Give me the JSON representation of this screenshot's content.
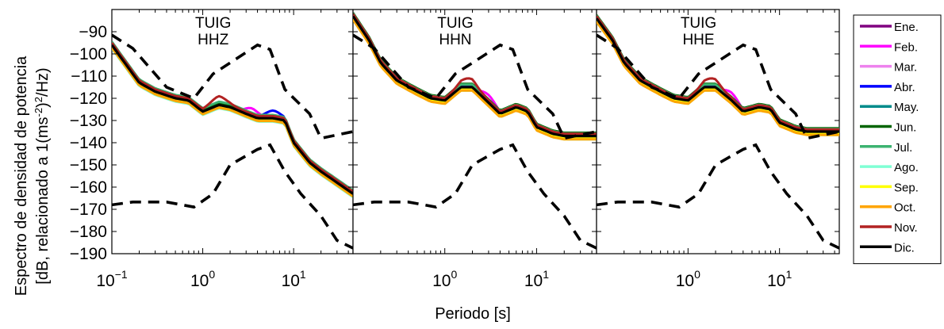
{
  "figure": {
    "xlabel": "Periodo [s]",
    "ylabel_line1": "Espectro de densidad de potencia",
    "ylabel_line2_prefix": "[dB, relacionado a 1(ms",
    "ylabel_sup1": "-2",
    "ylabel_mid": ")",
    "ylabel_sup2": "2",
    "ylabel_suffix": "/Hz)"
  },
  "chart_data": {
    "type": "line",
    "x_scale": "log",
    "xlim": [
      0.1,
      45
    ],
    "ylim": [
      -190,
      -80
    ],
    "y_ticks": [
      -90,
      -100,
      -110,
      -120,
      -130,
      -140,
      -150,
      -160,
      -170,
      -180,
      -190
    ],
    "x_ticks": [
      {
        "base": "10",
        "exp": "-1"
      },
      {
        "base": "10",
        "exp": "0"
      },
      {
        "base": "10",
        "exp": "1"
      }
    ],
    "grid": false,
    "legend_position": "right",
    "months": [
      "Ene.",
      "Feb.",
      "Mar.",
      "Abr.",
      "May.",
      "Jun.",
      "Jul.",
      "Ago.",
      "Sep.",
      "Oct.",
      "Nov.",
      "Dic."
    ],
    "month_colors": [
      "#800080",
      "#ff00ff",
      "#ee82ee",
      "#0000ff",
      "#008b8b",
      "#006400",
      "#3cb371",
      "#7fffd4",
      "#ffff00",
      "#ffa500",
      "#b22222",
      "#000000"
    ],
    "panels": [
      {
        "title_line1": "TUIG",
        "title_line2": "HHZ",
        "period": [
          0.1,
          0.15,
          0.2,
          0.3,
          0.5,
          0.7,
          1.0,
          1.5,
          2.0,
          3.0,
          4.0,
          6.0,
          8.0,
          10.0,
          15.0,
          20.0,
          30.0,
          45.0
        ],
        "base": [
          -96,
          -106,
          -113,
          -117,
          -120,
          -121,
          -126,
          -123,
          -124,
          -127,
          -129,
          -129,
          -130,
          -140,
          -149,
          -153,
          -158,
          -163
        ],
        "month_offsets": [
          0.5,
          -0.5,
          0.0,
          0.5,
          -1.0,
          1.0,
          1.5,
          -1.5,
          -0.8,
          -1.2,
          1.0,
          0.0
        ],
        "bump_months": [
          {
            "month": "Feb.",
            "x": 3.5,
            "dy": 4
          },
          {
            "month": "Nov.",
            "x": 1.5,
            "dy": 3
          },
          {
            "month": "Abr.",
            "x": 6.0,
            "dy": 3
          }
        ],
        "nhnm_period": [
          0.1,
          0.17,
          0.4,
          0.8,
          1.3,
          4.0,
          5.5,
          8.0,
          15.0,
          20.0,
          45.0
        ],
        "nhnm": [
          -91.5,
          -97.5,
          -115,
          -120,
          -109,
          -96,
          -98,
          -116,
          -127,
          -138,
          -135
        ],
        "nlnm_period": [
          0.1,
          0.17,
          0.4,
          0.8,
          1.3,
          2.0,
          4.0,
          5.5,
          8.0,
          12.0,
          20.0,
          30.0,
          45.0
        ],
        "nlnm": [
          -168,
          -166.7,
          -166.7,
          -169,
          -163,
          -150,
          -143,
          -141,
          -153,
          -163,
          -173,
          -184,
          -187.5
        ]
      },
      {
        "title_line1": "TUIG",
        "title_line2": "HHN",
        "period": [
          0.1,
          0.15,
          0.2,
          0.3,
          0.5,
          0.7,
          1.0,
          1.5,
          2.0,
          3.0,
          4.0,
          6.0,
          8.0,
          10.0,
          15.0,
          20.0,
          30.0,
          45.0
        ],
        "base": [
          -83,
          -94,
          -104,
          -112,
          -117,
          -120,
          -121,
          -115,
          -115,
          -122,
          -127,
          -124,
          -126,
          -133,
          -136,
          -137,
          -137,
          -137
        ],
        "month_offsets": [
          0.5,
          -0.5,
          0.0,
          0.5,
          -1.0,
          1.5,
          1.2,
          -1.5,
          -1.0,
          -1.5,
          1.0,
          0.0
        ],
        "bump_months": [
          {
            "month": "Feb.",
            "x": 3.0,
            "dy": 4
          },
          {
            "month": "Nov.",
            "x": 1.8,
            "dy": 3
          }
        ],
        "nhnm_period": [
          0.1,
          0.17,
          0.4,
          0.8,
          1.3,
          4.0,
          5.5,
          8.0,
          15.0,
          20.0,
          45.0
        ],
        "nhnm": [
          -91.5,
          -97.5,
          -115,
          -120,
          -109,
          -96,
          -98,
          -116,
          -127,
          -138,
          -135
        ],
        "nlnm_period": [
          0.1,
          0.17,
          0.4,
          0.8,
          1.3,
          2.0,
          4.0,
          5.5,
          8.0,
          12.0,
          20.0,
          30.0,
          45.0
        ],
        "nlnm": [
          -168,
          -166.7,
          -166.7,
          -169,
          -163,
          -150,
          -143,
          -141,
          -153,
          -163,
          -173,
          -184,
          -187.5
        ]
      },
      {
        "title_line1": "TUIG",
        "title_line2": "HHE",
        "period": [
          0.1,
          0.15,
          0.2,
          0.3,
          0.5,
          0.7,
          1.0,
          1.5,
          2.0,
          3.0,
          4.0,
          6.0,
          8.0,
          10.0,
          15.0,
          20.0,
          30.0,
          45.0
        ],
        "base": [
          -84,
          -94,
          -104,
          -112,
          -117,
          -120,
          -121,
          -115,
          -115,
          -121,
          -126,
          -124,
          -125,
          -131,
          -134,
          -135,
          -135,
          -135
        ],
        "month_offsets": [
          0.5,
          -0.5,
          0.0,
          0.5,
          -1.0,
          1.5,
          1.2,
          -1.5,
          -1.0,
          -1.5,
          1.0,
          0.0
        ],
        "bump_months": [
          {
            "month": "Feb.",
            "x": 3.0,
            "dy": 4
          },
          {
            "month": "Nov.",
            "x": 1.8,
            "dy": 3
          }
        ],
        "nhnm_period": [
          0.1,
          0.17,
          0.4,
          0.8,
          1.3,
          4.0,
          5.5,
          8.0,
          15.0,
          20.0,
          45.0
        ],
        "nhnm": [
          -91.5,
          -97.5,
          -115,
          -120,
          -109,
          -96,
          -98,
          -116,
          -127,
          -138,
          -135
        ],
        "nlnm_period": [
          0.1,
          0.17,
          0.4,
          0.8,
          1.3,
          2.0,
          4.0,
          5.5,
          8.0,
          12.0,
          20.0,
          30.0,
          45.0
        ],
        "nlnm": [
          -168,
          -166.7,
          -166.7,
          -169,
          -163,
          -150,
          -143,
          -141,
          -153,
          -163,
          -173,
          -184,
          -187.5
        ]
      }
    ]
  }
}
